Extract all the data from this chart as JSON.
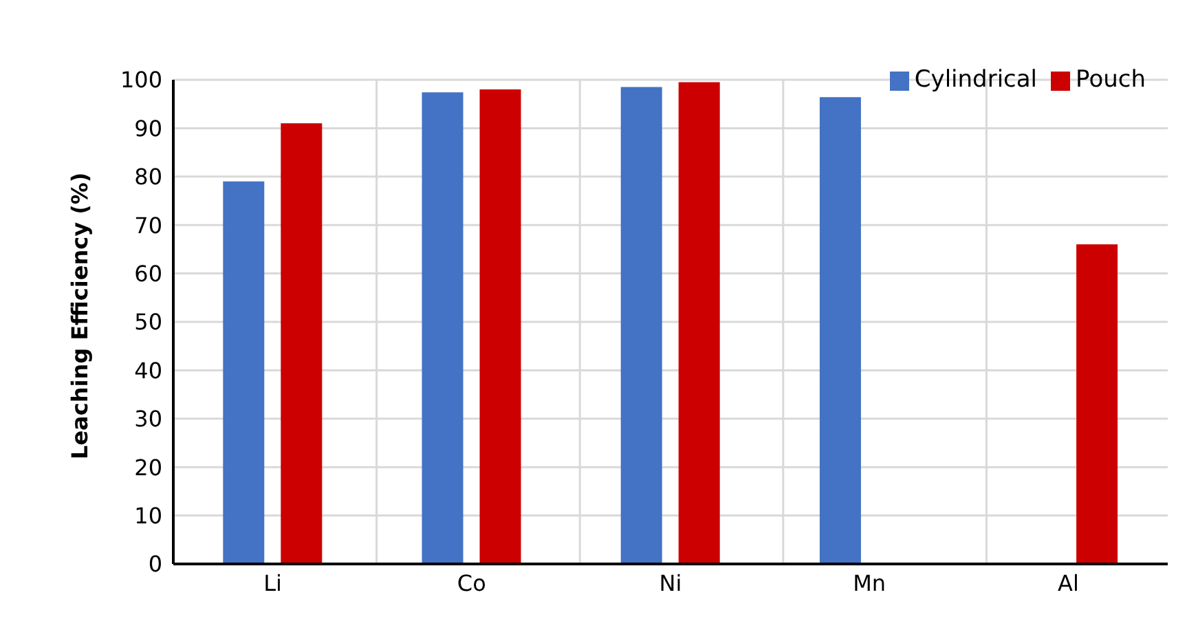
{
  "chart_data": {
    "type": "bar",
    "ylabel": "Leaching Efficiency (%)",
    "categories": [
      "Li",
      "Co",
      "Ni",
      "Mn",
      "Al"
    ],
    "series": [
      {
        "name": "Cylindrical",
        "color": "#4472c4",
        "values": [
          79,
          97.4,
          98.5,
          96.4,
          null
        ]
      },
      {
        "name": "Pouch",
        "color": "#cc0000",
        "values": [
          91,
          98,
          99.5,
          null,
          66
        ]
      }
    ],
    "ylim": [
      0,
      100
    ],
    "yticks": [
      0,
      10,
      20,
      30,
      40,
      50,
      60,
      70,
      80,
      90,
      100
    ],
    "grid": true,
    "legend": "top right"
  }
}
